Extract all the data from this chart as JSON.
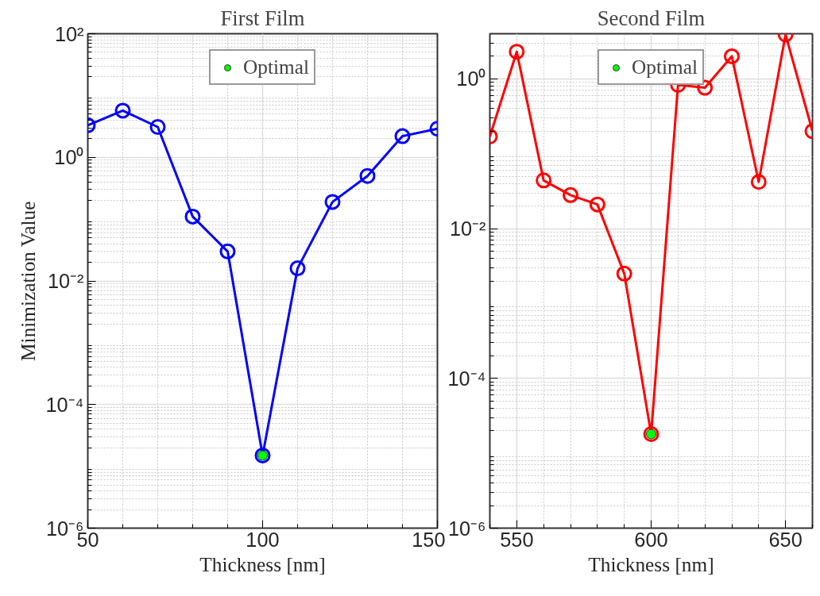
{
  "chart_data": [
    {
      "type": "line",
      "title": "First Film",
      "xlabel": "Thickness [nm]",
      "ylabel": "Minimization Value",
      "x": [
        50,
        60,
        70,
        80,
        90,
        100,
        110,
        120,
        130,
        140,
        150
      ],
      "xlim": [
        50,
        150
      ],
      "xticks": [
        50,
        100,
        150
      ],
      "ylim": [
        1e-06,
        100
      ],
      "yticks": [
        {
          "value": 1e-06,
          "label": "10⁻⁶"
        },
        {
          "value": 0.0001,
          "label": "10⁻⁴"
        },
        {
          "value": 0.01,
          "label": "10⁻²"
        },
        {
          "value": 1,
          "label": "10⁰"
        },
        {
          "value": 100,
          "label": "10²"
        }
      ],
      "log": "y",
      "grid": true,
      "legend": "top",
      "marker": "circle",
      "series": [
        {
          "color": "#0000ff",
          "values": [
            3.3,
            5.7,
            3.1,
            0.11,
            0.03,
            1.5e-05,
            0.016,
            0.19,
            0.5,
            2.2,
            2.9
          ]
        },
        {
          "name": "Optimal",
          "type": "scatter",
          "x": [
            100
          ],
          "color": "#00ff00",
          "values": [
            1.5e-05
          ]
        }
      ]
    },
    {
      "type": "line",
      "title": "Second Film",
      "xlabel": "Thickness [nm]",
      "x": [
        540,
        550,
        560,
        570,
        580,
        590,
        600,
        610,
        620,
        630,
        640,
        650,
        660
      ],
      "xlim": [
        540,
        660
      ],
      "xticks": [
        550,
        600,
        650
      ],
      "ylim": [
        1e-06,
        4
      ],
      "yticks": [
        {
          "value": 1e-06,
          "label": "10⁻⁶"
        },
        {
          "value": 0.0001,
          "label": "10⁻⁴"
        },
        {
          "value": 0.01,
          "label": "10⁻²"
        },
        {
          "value": 1,
          "label": "10⁰"
        }
      ],
      "log": "y",
      "grid": true,
      "legend": "top",
      "marker": "circle",
      "series": [
        {
          "color": "#ff0000",
          "values": [
            0.17,
            2.3,
            0.044,
            0.028,
            0.021,
            0.0025,
            1.8e-05,
            0.83,
            0.76,
            2.0,
            0.042,
            3.9,
            0.2
          ]
        },
        {
          "name": "Optimal",
          "type": "scatter",
          "x": [
            600
          ],
          "color": "#00ff00",
          "values": [
            1.8e-05
          ]
        }
      ]
    }
  ]
}
